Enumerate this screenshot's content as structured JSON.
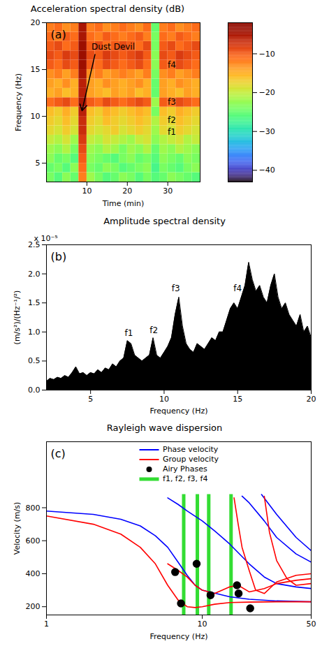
{
  "chart_data": [
    {
      "type": "heatmap",
      "panel_label": "(a)",
      "title": "Acceleration spectral density (dB)",
      "x_label": "Time (min)",
      "y_label": "Frequency (Hz)",
      "xlim": [
        0,
        38
      ],
      "xticks": [
        10,
        20,
        30
      ],
      "ylim": [
        3,
        20
      ],
      "yticks": [
        5,
        10,
        15,
        20
      ],
      "cells": {
        "time_edges": [
          0,
          2,
          4,
          6,
          8,
          10,
          12,
          14,
          16,
          18,
          20,
          22,
          24,
          26,
          28,
          30,
          32,
          34,
          36,
          38
        ],
        "frequency_edges": [
          3,
          4,
          5,
          6,
          7,
          8,
          9,
          10,
          11,
          12,
          13,
          14,
          15,
          16,
          17,
          18,
          19,
          20
        ],
        "values": [
          [
            -24,
            -26,
            -23,
            -25,
            -12,
            -22,
            -24,
            -26,
            -25,
            -23,
            -24,
            -26,
            -24,
            -26,
            -25,
            -23,
            -24,
            -25,
            -26
          ],
          [
            -25,
            -24,
            -26,
            -23,
            -11,
            -24,
            -25,
            -23,
            -24,
            -26,
            -25,
            -24,
            -23,
            -27,
            -24,
            -25,
            -26,
            -24,
            -23
          ],
          [
            -23,
            -25,
            -24,
            -26,
            -10,
            -23,
            -24,
            -25,
            -26,
            -24,
            -23,
            -25,
            -24,
            -26,
            -23,
            -24,
            -25,
            -23,
            -24
          ],
          [
            -22,
            -23,
            -21,
            -24,
            -9,
            -22,
            -23,
            -21,
            -22,
            -24,
            -22,
            -23,
            -21,
            -25,
            -22,
            -23,
            -21,
            -22,
            -23
          ],
          [
            -20,
            -21,
            -19,
            -22,
            -8,
            -20,
            -21,
            -19,
            -20,
            -21,
            -22,
            -20,
            -19,
            -23,
            -21,
            -20,
            -19,
            -21,
            -20
          ],
          [
            -18,
            -19,
            -17,
            -19,
            -7,
            -18,
            -19,
            -18,
            -17,
            -19,
            -18,
            -17,
            -18,
            -22,
            -18,
            -19,
            -17,
            -18,
            -19
          ],
          [
            -17,
            -18,
            -16,
            -18,
            -7,
            -17,
            -18,
            -16,
            -17,
            -18,
            -17,
            -16,
            -17,
            -21,
            -17,
            -18,
            -16,
            -17,
            -18
          ],
          [
            -16,
            -17,
            -15,
            -17,
            -6,
            -16,
            -17,
            -15,
            -16,
            -17,
            -16,
            -15,
            -16,
            -24,
            -16,
            -17,
            -15,
            -16,
            -17
          ],
          [
            -11,
            -10,
            -9,
            -11,
            -5,
            -10,
            -11,
            -9,
            -10,
            -11,
            -10,
            -9,
            -10,
            -22,
            -10,
            -11,
            -9,
            -10,
            -11
          ],
          [
            -15,
            -14,
            -16,
            -15,
            -6,
            -14,
            -15,
            -16,
            -14,
            -15,
            -14,
            -16,
            -15,
            -25,
            -14,
            -15,
            -16,
            -14,
            -15
          ],
          [
            -14,
            -15,
            -13,
            -15,
            -6,
            -14,
            -15,
            -13,
            -14,
            -15,
            -14,
            -13,
            -15,
            -25,
            -14,
            -15,
            -13,
            -14,
            -15
          ],
          [
            -13,
            -12,
            -14,
            -12,
            -5,
            -13,
            -12,
            -14,
            -13,
            -12,
            -13,
            -14,
            -12,
            -24,
            -13,
            -12,
            -14,
            -13,
            -12
          ],
          [
            -10,
            -11,
            -9,
            -10,
            -4,
            -10,
            -11,
            -9,
            -10,
            -11,
            -10,
            -9,
            -11,
            -23,
            -10,
            -11,
            -9,
            -10,
            -11
          ],
          [
            -9,
            -10,
            -8,
            -9,
            -4,
            -9,
            -10,
            -8,
            -9,
            -10,
            -9,
            -8,
            -10,
            -23,
            -9,
            -10,
            -8,
            -9,
            -10
          ],
          [
            -10,
            -9,
            -11,
            -10,
            -4,
            -10,
            -9,
            -11,
            -10,
            -9,
            -10,
            -11,
            -9,
            -24,
            -10,
            -9,
            -11,
            -10,
            -9
          ],
          [
            -11,
            -12,
            -10,
            -11,
            -5,
            -11,
            -12,
            -10,
            -11,
            -12,
            -11,
            -10,
            -12,
            -24,
            -11,
            -12,
            -10,
            -11,
            -12
          ],
          [
            -12,
            -11,
            -13,
            -12,
            -5,
            -12,
            -11,
            -13,
            -12,
            -11,
            -12,
            -13,
            -11,
            -25,
            -12,
            -11,
            -13,
            -12,
            -11
          ]
        ]
      },
      "colorbar": {
        "range": [
          -43,
          -2
        ],
        "ticks": [
          -40,
          -30,
          -20,
          -10
        ]
      },
      "annotations": [
        {
          "text": "Dust Devil",
          "x": 16.5,
          "y": 17.4,
          "arrow": [
            [
              12,
              16.6
            ],
            [
              8.8,
              10.6
            ]
          ]
        },
        {
          "text": "f4",
          "x": 31,
          "y": 15.5
        },
        {
          "text": "f3",
          "x": 31,
          "y": 11.5
        },
        {
          "text": "f2",
          "x": 31,
          "y": 9.6
        },
        {
          "text": "f1",
          "x": 31,
          "y": 8.3
        }
      ]
    },
    {
      "type": "area",
      "panel_label": "(b)",
      "title": "Amplitude spectral density",
      "x_label": "Frequency (Hz)",
      "y_label": "(m/s²)/(Hz⁻¹/²)",
      "y_scale_note": "x 10⁻⁵",
      "color": "#000000",
      "xlim": [
        2,
        20
      ],
      "xticks": [
        5,
        10,
        15,
        20
      ],
      "ylim": [
        0,
        2.5
      ],
      "yticks": [
        0,
        0.5,
        1,
        1.5,
        2,
        2.5
      ],
      "x": [
        2,
        2.25,
        2.5,
        2.75,
        3,
        3.25,
        3.5,
        3.75,
        4,
        4.25,
        4.5,
        4.75,
        5,
        5.25,
        5.5,
        5.75,
        6,
        6.25,
        6.5,
        6.75,
        7,
        7.25,
        7.5,
        7.75,
        8,
        8.25,
        8.5,
        8.75,
        9,
        9.25,
        9.5,
        9.75,
        10,
        10.25,
        10.5,
        10.75,
        11,
        11.25,
        11.5,
        11.75,
        12,
        12.25,
        12.5,
        12.75,
        13,
        13.25,
        13.5,
        13.75,
        14,
        14.25,
        14.5,
        14.75,
        15,
        15.25,
        15.5,
        15.75,
        16,
        16.25,
        16.5,
        16.75,
        17,
        17.25,
        17.5,
        17.75,
        18,
        18.25,
        18.5,
        18.75,
        19,
        19.25,
        19.5,
        19.75,
        20
      ],
      "values": [
        0.15,
        0.2,
        0.18,
        0.22,
        0.2,
        0.25,
        0.22,
        0.3,
        0.4,
        0.28,
        0.3,
        0.25,
        0.3,
        0.28,
        0.35,
        0.3,
        0.38,
        0.35,
        0.45,
        0.4,
        0.5,
        0.55,
        0.85,
        0.8,
        0.6,
        0.55,
        0.5,
        0.55,
        0.6,
        0.9,
        0.6,
        0.55,
        0.65,
        0.75,
        0.9,
        1.3,
        1.6,
        1.1,
        0.8,
        0.7,
        0.65,
        0.8,
        0.75,
        0.7,
        0.8,
        0.9,
        0.85,
        1.0,
        1.0,
        1.2,
        1.4,
        1.5,
        1.4,
        1.6,
        1.8,
        2.2,
        1.9,
        1.7,
        1.8,
        1.6,
        1.5,
        1.8,
        2.0,
        1.6,
        1.4,
        1.5,
        1.3,
        1.2,
        1.1,
        1.3,
        1.0,
        1.1,
        0.9
      ],
      "annotations": [
        {
          "text": "f1",
          "x": 7.6,
          "y": 0.98
        },
        {
          "text": "f2",
          "x": 9.3,
          "y": 1.03
        },
        {
          "text": "f3",
          "x": 10.8,
          "y": 1.75
        },
        {
          "text": "f4",
          "x": 15.0,
          "y": 1.75
        }
      ]
    },
    {
      "type": "line",
      "panel_label": "(c)",
      "title": "Rayleigh wave dispersion",
      "x_label": "Frequency (Hz)",
      "y_label": "Velocity (m/s)",
      "log": "x",
      "xlim": [
        1,
        50
      ],
      "xticks": [
        1,
        10,
        50
      ],
      "ylim": [
        150,
        1200
      ],
      "yticks": [
        200,
        400,
        600,
        800
      ],
      "legend": "top",
      "series": [
        {
          "name": "Phase velocity",
          "type": "line",
          "color": "#0000ff",
          "line_style": "solid",
          "curves": [
            {
              "x": [
                1,
                2,
                3,
                4,
                5,
                6,
                7,
                8,
                9,
                10,
                15,
                20,
                30,
                50
              ],
              "y": [
                780,
                760,
                730,
                690,
                630,
                560,
                470,
                390,
                330,
                300,
                260,
                245,
                235,
                230
              ]
            },
            {
              "x": [
                6,
                7,
                8,
                10,
                12,
                15,
                20,
                25,
                30,
                40,
                50
              ],
              "y": [
                860,
                820,
                780,
                720,
                660,
                580,
                460,
                380,
                340,
                320,
                310
              ]
            },
            {
              "x": [
                18,
                20,
                25,
                30,
                40,
                50
              ],
              "y": [
                870,
                830,
                720,
                620,
                520,
                470
              ]
            },
            {
              "x": [
                24,
                30,
                40,
                50
              ],
              "y": [
                880,
                760,
                620,
                540
              ]
            }
          ]
        },
        {
          "name": "Group velocity",
          "type": "line",
          "color": "#ff0000",
          "line_style": "solid",
          "curves": [
            {
              "x": [
                1,
                2,
                3,
                4,
                5,
                6,
                7,
                8,
                9,
                10,
                12,
                15,
                20,
                30,
                50
              ],
              "y": [
                750,
                700,
                640,
                560,
                460,
                330,
                240,
                200,
                195,
                200,
                215,
                225,
                228,
                230,
                230
              ]
            },
            {
              "x": [
                6,
                7,
                8,
                9,
                10,
                12,
                15,
                17,
                20,
                25,
                30,
                40,
                50
              ],
              "y": [
                460,
                420,
                380,
                330,
                300,
                280,
                320,
                330,
                290,
                310,
                340,
                360,
                370
              ]
            },
            {
              "x": [
                16,
                17,
                18,
                20,
                22,
                25,
                30,
                40,
                50
              ],
              "y": [
                860,
                700,
                560,
                420,
                300,
                280,
                350,
                390,
                400
              ]
            },
            {
              "x": [
                25,
                27,
                30,
                35,
                40,
                50
              ],
              "y": [
                870,
                650,
                480,
                370,
                330,
                340
              ]
            }
          ]
        },
        {
          "name": "Airy Phases",
          "type": "scatter",
          "color": "#000000",
          "marker": "circle",
          "x": [
            6.7,
            7.3,
            9.2,
            11.3,
            16.7,
            17.1,
            20.3
          ],
          "y": [
            410,
            220,
            460,
            270,
            330,
            280,
            190
          ]
        },
        {
          "name": "f1, f2, f3, f4",
          "type": "rule",
          "color": "#33dd33",
          "x": [
            7.6,
            9.3,
            11.0,
            15.3
          ],
          "y_extent": [
            150,
            880
          ]
        }
      ]
    }
  ]
}
